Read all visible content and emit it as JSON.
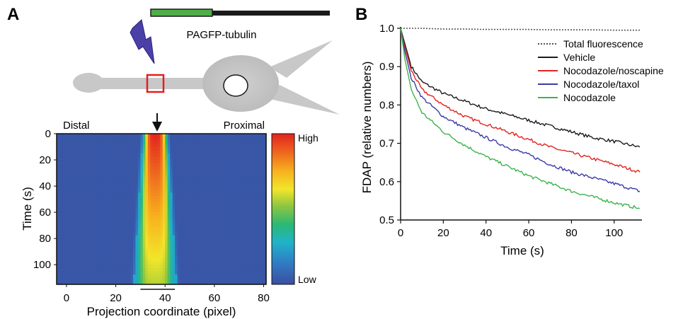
{
  "panel_a": {
    "label": "A",
    "construct_label": "PAGFP-tubulin",
    "distal_label": "Distal",
    "proximal_label": "Proximal",
    "colorbar_high": "High",
    "colorbar_low": "Low",
    "colors": {
      "neuron": "#c8c8c8",
      "roi": "#e02020",
      "flash": "#4b40a8",
      "construct_green": "#4fae48",
      "construct_black": "#1a1a1a"
    }
  },
  "panel_b": {
    "label": "B"
  },
  "chart_data": [
    {
      "type": "heatmap",
      "xlabel": "Projection coordinate (pixel)",
      "ylabel": "Time (s)",
      "xlim": [
        -4,
        81
      ],
      "ylim": [
        0,
        115
      ],
      "x_ticks": [
        "0",
        "20",
        "40",
        "60",
        "80"
      ],
      "y_ticks": [
        "0",
        "20",
        "40",
        "60",
        "80",
        "100"
      ],
      "photoactivation_center_x": 36,
      "photoactivation_region_x": [
        30,
        44
      ],
      "profile": {
        "center_x": 36,
        "half_width_start": 4,
        "half_width_end": 7,
        "peak_start": 1.0,
        "peak_end": 0.55
      },
      "colorbar": [
        "Low",
        "High"
      ],
      "colormap": [
        "#3b4ea2",
        "#2f7fc4",
        "#1fb4c8",
        "#2cb872",
        "#8ec63f",
        "#f2e62a",
        "#f7b21e",
        "#ef6a1f",
        "#e3231f"
      ]
    },
    {
      "type": "line",
      "xlabel": "Time (s)",
      "ylabel": "FDAP (relative numbers)",
      "xlim": [
        0,
        113
      ],
      "ylim": [
        0.5,
        1.0
      ],
      "x_ticks": [
        "0",
        "20",
        "40",
        "60",
        "80",
        "100"
      ],
      "y_ticks": [
        "0.5",
        "0.6",
        "0.7",
        "0.8",
        "0.9",
        "1.0"
      ],
      "grid": false,
      "legend_position": "top-right",
      "x": [
        0,
        2,
        5,
        10,
        20,
        30,
        40,
        50,
        60,
        70,
        80,
        90,
        100,
        112
      ],
      "series": [
        {
          "name": "Total fluorescence",
          "color": "#555555",
          "dashed": true,
          "values": [
            1.0,
            1.0,
            1.0,
            1.0,
            0.998,
            0.998,
            0.997,
            0.997,
            0.997,
            0.996,
            0.996,
            0.996,
            0.995,
            0.995
          ]
        },
        {
          "name": "Vehicle",
          "color": "#1a1a1a",
          "dashed": false,
          "values": [
            1.0,
            0.96,
            0.9,
            0.86,
            0.83,
            0.81,
            0.79,
            0.775,
            0.76,
            0.745,
            0.73,
            0.715,
            0.705,
            0.69
          ]
        },
        {
          "name": "Nocodazole/noscapine",
          "color": "#e3231f",
          "dashed": false,
          "values": [
            1.0,
            0.95,
            0.89,
            0.84,
            0.8,
            0.77,
            0.75,
            0.73,
            0.71,
            0.69,
            0.675,
            0.66,
            0.645,
            0.625
          ]
        },
        {
          "name": "Nocodazole/taxol",
          "color": "#3b3ba8",
          "dashed": false,
          "values": [
            1.0,
            0.94,
            0.87,
            0.82,
            0.77,
            0.74,
            0.715,
            0.69,
            0.67,
            0.645,
            0.625,
            0.61,
            0.595,
            0.575
          ]
        },
        {
          "name": "Nocodazole",
          "color": "#3cb44b",
          "dashed": false,
          "values": [
            1.0,
            0.92,
            0.84,
            0.78,
            0.73,
            0.695,
            0.665,
            0.64,
            0.615,
            0.595,
            0.575,
            0.56,
            0.545,
            0.53
          ]
        }
      ]
    }
  ]
}
